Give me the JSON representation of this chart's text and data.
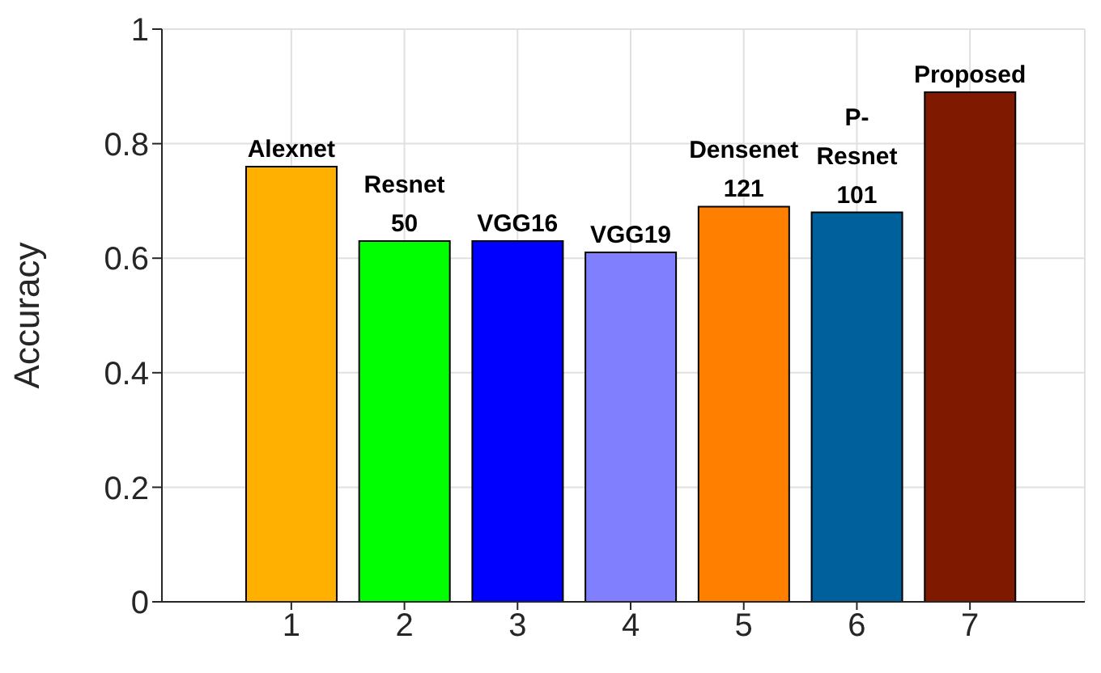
{
  "chart_data": {
    "type": "bar",
    "ylabel": "Accuracy",
    "categories": [
      "1",
      "2",
      "3",
      "4",
      "5",
      "6",
      "7"
    ],
    "values": [
      0.76,
      0.63,
      0.63,
      0.61,
      0.69,
      0.68,
      0.89
    ],
    "colors": [
      "#ffb000",
      "#00ff00",
      "#0000ff",
      "#8080ff",
      "#ff8000",
      "#00609c",
      "#7f1a00"
    ],
    "ylim": [
      0,
      1
    ],
    "yticks": [
      0,
      0.2,
      0.4,
      0.6,
      0.8,
      1
    ],
    "grid": true,
    "annotations": [
      {
        "text": "Alexnet",
        "x": "1",
        "y": 0.76
      },
      {
        "text": "Resnet\n50",
        "x": "2",
        "y": 0.63
      },
      {
        "text": "VGG16",
        "x": "3",
        "y": 0.63
      },
      {
        "text": "VGG19",
        "x": "4",
        "y": 0.61
      },
      {
        "text": "Densenet\n121",
        "x": "5",
        "y": 0.69
      },
      {
        "text": "P-\nResnet\n101",
        "x": "6",
        "y": 0.68
      },
      {
        "text": "Proposed",
        "x": "7",
        "y": 0.89
      }
    ]
  }
}
